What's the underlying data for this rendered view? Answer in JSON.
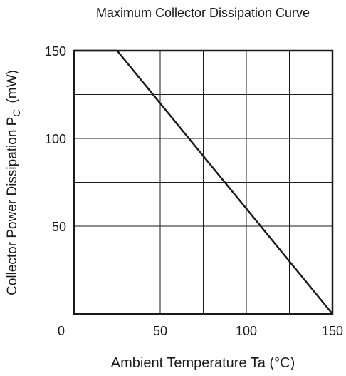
{
  "chart_data": {
    "type": "line",
    "title": "Maximum Collector Dissipation Curve",
    "xlabel": "Ambient Temperature  Ta  (°C)",
    "ylabel_main": "Collector Power Dissipation  P",
    "ylabel_sub": "C",
    "ylabel_unit": "(mW)",
    "xlim": [
      0,
      150
    ],
    "ylim": [
      0,
      150
    ],
    "x_tick_labels": [
      "0",
      "50",
      "100",
      "150"
    ],
    "y_tick_labels": [
      "50",
      "100",
      "150"
    ],
    "x_gridlines": [
      25,
      50,
      75,
      100,
      125
    ],
    "y_gridlines": [
      25,
      50,
      75,
      100,
      125
    ],
    "grid": true,
    "colors": {
      "line": "#1a1a1a",
      "grid": "#1a1a1a"
    },
    "series": [
      {
        "x": [
          0,
          25,
          150
        ],
        "y": [
          150,
          150,
          0
        ]
      }
    ]
  }
}
